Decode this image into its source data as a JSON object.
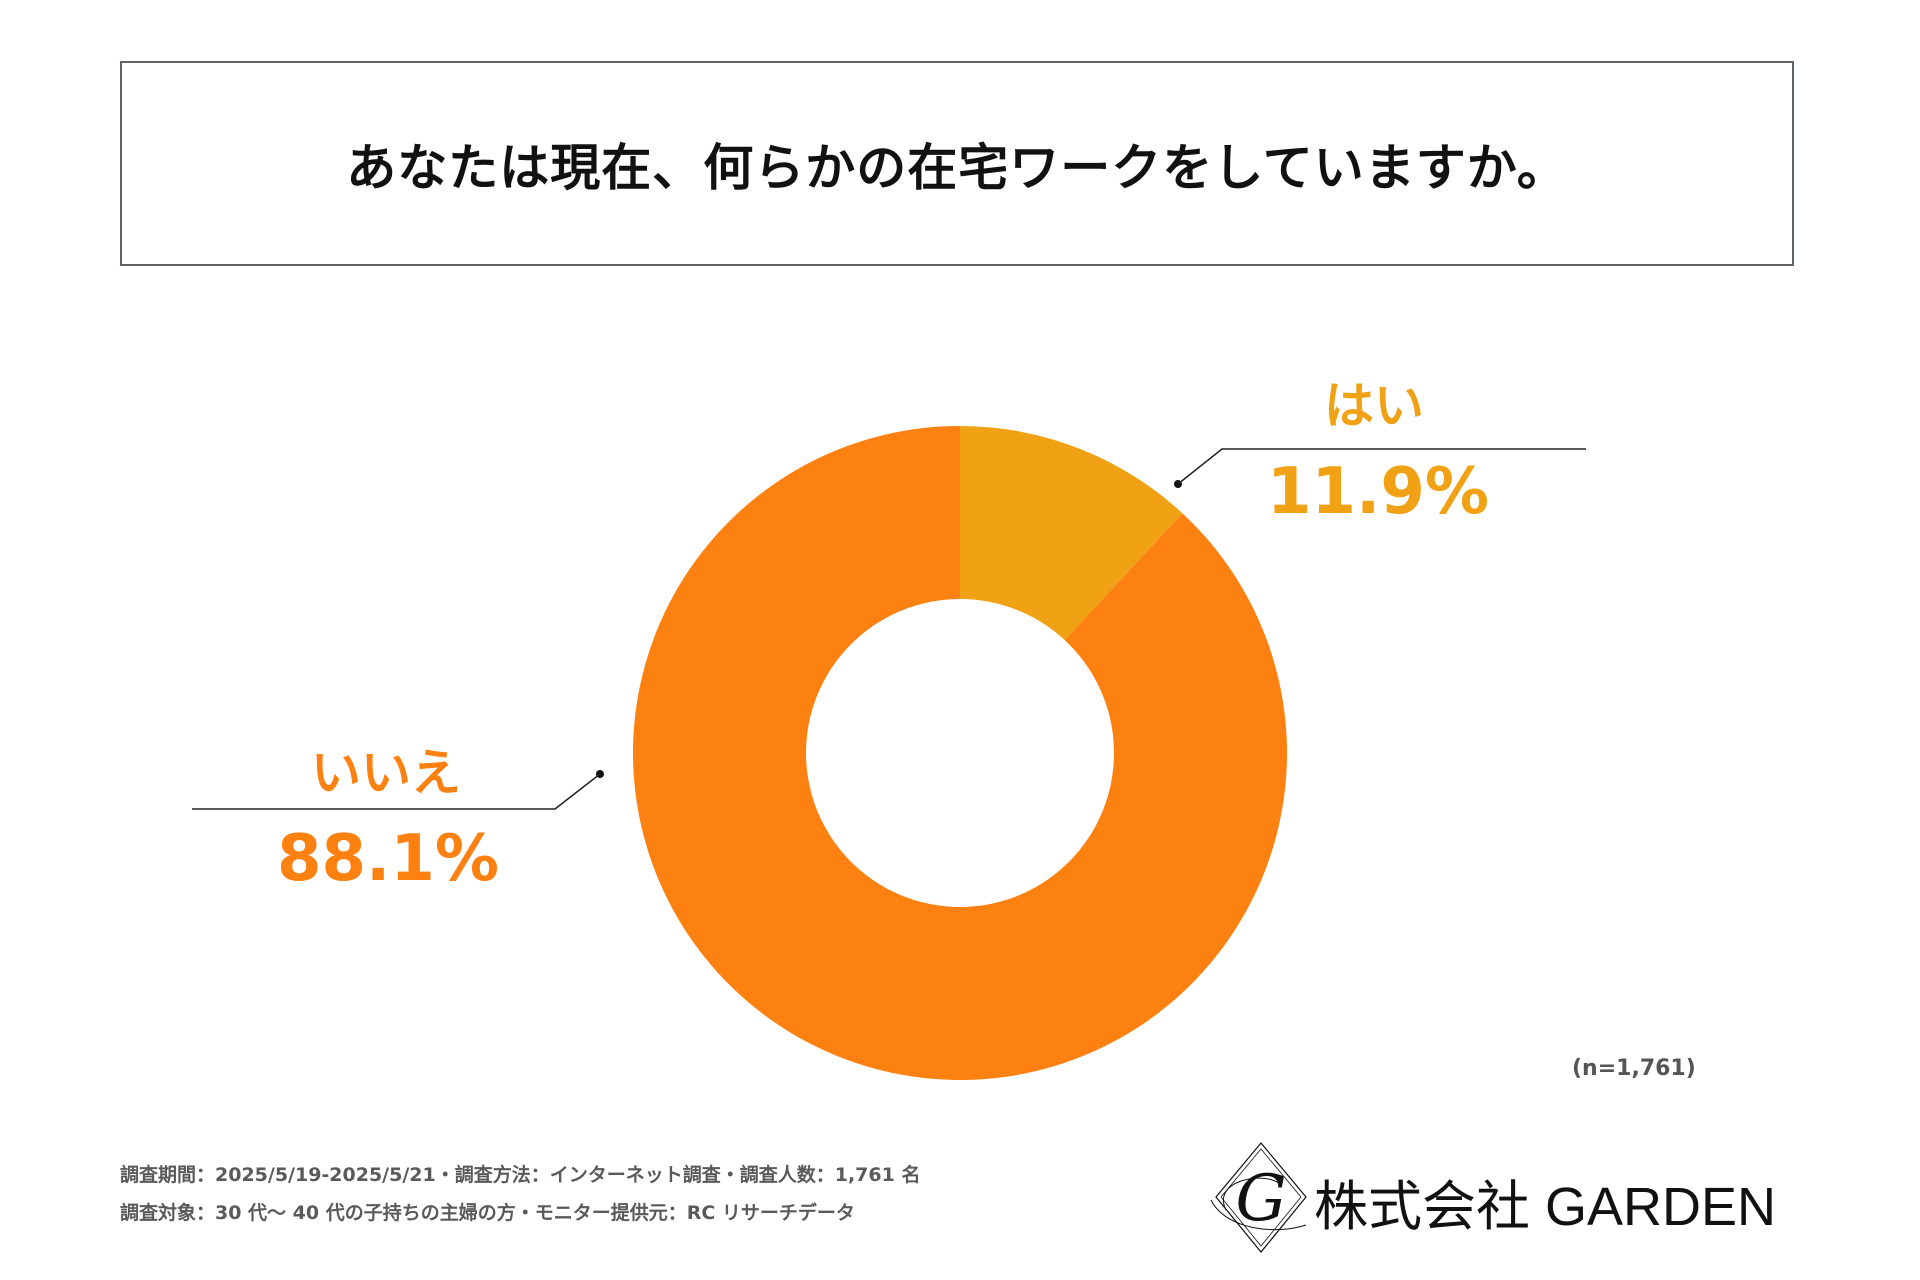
{
  "title": "あなたは現在、何らかの在宅ワークをしていますか。",
  "chart_data": {
    "type": "pie",
    "donut": true,
    "categories": [
      "はい",
      "いいえ"
    ],
    "values": [
      11.9,
      88.1
    ],
    "value_labels": [
      "11.9%",
      "88.1%"
    ],
    "colors": [
      "#F0A114",
      "#FD8111"
    ],
    "legend": "none"
  },
  "sample_size": "(n=1,761)",
  "footer": {
    "line1": "調査期間：2025/5/19-2025/5/21・調査方法：インターネット調査・調査人数：1,761 名",
    "line2": "調査対象：30 代〜 40 代の子持ちの主婦の方・モニター提供元：RC リサーチデータ"
  },
  "logo": {
    "text": "株式会社 GARDEN",
    "mark": "G"
  }
}
